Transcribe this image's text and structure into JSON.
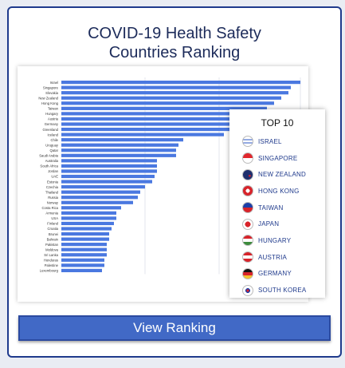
{
  "header": {
    "title_line1": "COVID-19 Health Safety",
    "title_line2": "Countries Ranking"
  },
  "colors": {
    "accent": "#1f3a8c",
    "bar": "#4a78e0",
    "button": "#4169c6"
  },
  "chart_data": {
    "type": "bar",
    "orientation": "horizontal",
    "grid": true,
    "categories": [
      "Israel",
      "Singapore",
      "Slovakia",
      "New Zealand",
      "Hong Kong",
      "Taiwan",
      "Hungary",
      "Austria",
      "Germany",
      "Greenland",
      "Iceland",
      "Chile",
      "Uruguay",
      "Qatar",
      "Saudi Arabia",
      "Australia",
      "South Africa",
      "Jordan",
      "UAE",
      "Estonia",
      "Czechia",
      "Thailand",
      "Russia",
      "Norway",
      "Costa Rica",
      "Armenia",
      "USA",
      "Finland",
      "Croatia",
      "Brunei",
      "Bahrain",
      "Pakistan",
      "Moldova",
      "Sri Lanka",
      "Honduras",
      "Palestine",
      "Luxembourg"
    ],
    "values": [
      100,
      96,
      95,
      92,
      89,
      86,
      83,
      80,
      78,
      77,
      68,
      51,
      49,
      48,
      48,
      40,
      40,
      40,
      39,
      38,
      35,
      33,
      32,
      30,
      25,
      23,
      23,
      22,
      21,
      20,
      20,
      19,
      19,
      19,
      18,
      18,
      17
    ]
  },
  "top10": {
    "title": "TOP 10",
    "items": [
      {
        "label": "ISRAEL",
        "icon": "israel-flag-icon"
      },
      {
        "label": "SINGAPORE",
        "icon": "singapore-flag-icon"
      },
      {
        "label": "NEW ZEALAND",
        "icon": "new-zealand-flag-icon"
      },
      {
        "label": "HONG KONG",
        "icon": "hong-kong-flag-icon"
      },
      {
        "label": "TAIWAN",
        "icon": "taiwan-flag-icon"
      },
      {
        "label": "JAPAN",
        "icon": "japan-flag-icon"
      },
      {
        "label": "HUNGARY",
        "icon": "hungary-flag-icon"
      },
      {
        "label": "AUSTRIA",
        "icon": "austria-flag-icon"
      },
      {
        "label": "GERMANY",
        "icon": "germany-flag-icon"
      },
      {
        "label": "SOUTH KOREA",
        "icon": "south-korea-flag-icon"
      }
    ]
  },
  "button": {
    "label": "View Ranking"
  }
}
